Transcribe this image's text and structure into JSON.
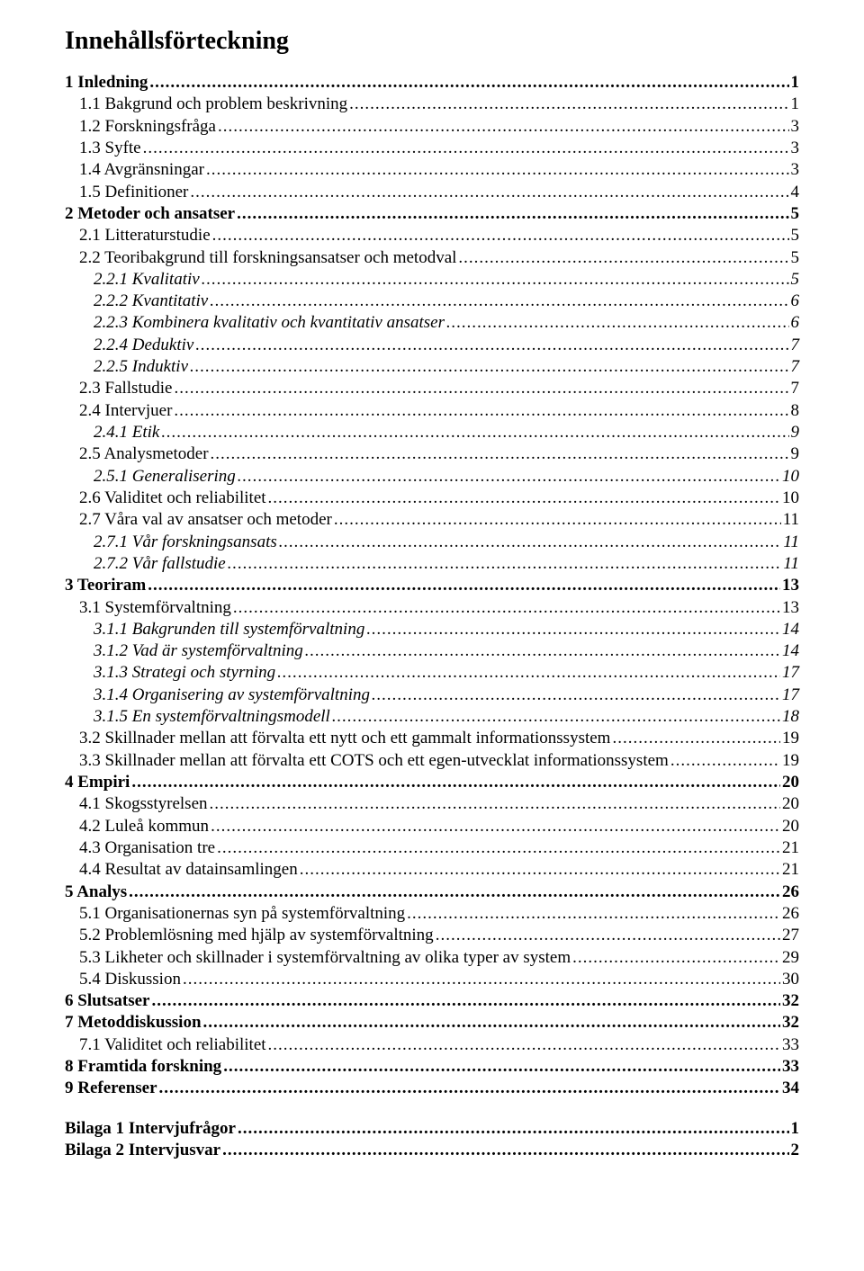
{
  "title": "Innehållsförteckning",
  "entries": [
    {
      "label": "1  Inledning",
      "page": "1",
      "level": 0,
      "bold": true,
      "italic": false
    },
    {
      "label": "1.1  Bakgrund och problem beskrivning",
      "page": "1",
      "level": 1,
      "bold": false,
      "italic": false
    },
    {
      "label": "1.2  Forskningsfråga",
      "page": "3",
      "level": 1,
      "bold": false,
      "italic": false
    },
    {
      "label": "1.3  Syfte",
      "page": "3",
      "level": 1,
      "bold": false,
      "italic": false
    },
    {
      "label": "1.4  Avgränsningar",
      "page": "3",
      "level": 1,
      "bold": false,
      "italic": false
    },
    {
      "label": "1.5  Definitioner",
      "page": "4",
      "level": 1,
      "bold": false,
      "italic": false
    },
    {
      "label": "2  Metoder och ansatser",
      "page": "5",
      "level": 0,
      "bold": true,
      "italic": false
    },
    {
      "label": "2.1  Litteraturstudie",
      "page": "5",
      "level": 1,
      "bold": false,
      "italic": false
    },
    {
      "label": "2.2  Teoribakgrund till forskningsansatser och metodval",
      "page": "5",
      "level": 1,
      "bold": false,
      "italic": false
    },
    {
      "label": "2.2.1  Kvalitativ",
      "page": "5",
      "level": 2,
      "bold": false,
      "italic": true
    },
    {
      "label": "2.2.2  Kvantitativ",
      "page": "6",
      "level": 2,
      "bold": false,
      "italic": true
    },
    {
      "label": "2.2.3  Kombinera kvalitativ och kvantitativ ansatser",
      "page": "6",
      "level": 2,
      "bold": false,
      "italic": true
    },
    {
      "label": "2.2.4  Deduktiv",
      "page": "7",
      "level": 2,
      "bold": false,
      "italic": true
    },
    {
      "label": "2.2.5  Induktiv",
      "page": "7",
      "level": 2,
      "bold": false,
      "italic": true
    },
    {
      "label": "2.3  Fallstudie",
      "page": "7",
      "level": 1,
      "bold": false,
      "italic": false
    },
    {
      "label": "2.4  Intervjuer",
      "page": "8",
      "level": 1,
      "bold": false,
      "italic": false
    },
    {
      "label": "2.4.1  Etik",
      "page": "9",
      "level": 2,
      "bold": false,
      "italic": true
    },
    {
      "label": "2.5  Analysmetoder",
      "page": "9",
      "level": 1,
      "bold": false,
      "italic": false
    },
    {
      "label": "2.5.1  Generalisering",
      "page": "10",
      "level": 2,
      "bold": false,
      "italic": true
    },
    {
      "label": "2.6  Validitet och reliabilitet",
      "page": "10",
      "level": 1,
      "bold": false,
      "italic": false
    },
    {
      "label": "2.7  Våra val av ansatser och metoder",
      "page": "11",
      "level": 1,
      "bold": false,
      "italic": false
    },
    {
      "label": "2.7.1  Vår forskningsansats",
      "page": "11",
      "level": 2,
      "bold": false,
      "italic": true
    },
    {
      "label": "2.7.2  Vår fallstudie ",
      "page": "11",
      "level": 2,
      "bold": false,
      "italic": true
    },
    {
      "label": "3  Teoriram",
      "page": "13",
      "level": 0,
      "bold": true,
      "italic": false
    },
    {
      "label": "3.1  Systemförvaltning",
      "page": "13",
      "level": 1,
      "bold": false,
      "italic": false
    },
    {
      "label": "3.1.1  Bakgrunden till systemförvaltning",
      "page": "14",
      "level": 2,
      "bold": false,
      "italic": true
    },
    {
      "label": "3.1.2  Vad är systemförvaltning",
      "page": "14",
      "level": 2,
      "bold": false,
      "italic": true
    },
    {
      "label": "3.1.3  Strategi och styrning",
      "page": "17",
      "level": 2,
      "bold": false,
      "italic": true
    },
    {
      "label": "3.1.4  Organisering av systemförvaltning",
      "page": "17",
      "level": 2,
      "bold": false,
      "italic": true
    },
    {
      "label": "3.1.5  En systemförvaltningsmodell",
      "page": "18",
      "level": 2,
      "bold": false,
      "italic": true
    },
    {
      "label": "3.2  Skillnader mellan att förvalta ett nytt och ett gammalt informationssystem",
      "page": "19",
      "level": 1,
      "bold": false,
      "italic": false
    },
    {
      "label": "3.3  Skillnader mellan att förvalta ett COTS och ett egen-utvecklat informationssystem",
      "page": "19",
      "level": 1,
      "bold": false,
      "italic": false
    },
    {
      "label": "4  Empiri",
      "page": "20",
      "level": 0,
      "bold": true,
      "italic": false
    },
    {
      "label": "4.1  Skogsstyrelsen",
      "page": "20",
      "level": 1,
      "bold": false,
      "italic": false
    },
    {
      "label": "4.2  Luleå kommun",
      "page": "20",
      "level": 1,
      "bold": false,
      "italic": false
    },
    {
      "label": "4.3  Organisation tre",
      "page": "21",
      "level": 1,
      "bold": false,
      "italic": false
    },
    {
      "label": "4.4  Resultat av datainsamlingen",
      "page": "21",
      "level": 1,
      "bold": false,
      "italic": false
    },
    {
      "label": "5  Analys",
      "page": "26",
      "level": 0,
      "bold": true,
      "italic": false
    },
    {
      "label": "5.1  Organisationernas syn på systemförvaltning ",
      "page": "26",
      "level": 1,
      "bold": false,
      "italic": false
    },
    {
      "label": "5.2  Problemlösning med hjälp av systemförvaltning",
      "page": "27",
      "level": 1,
      "bold": false,
      "italic": false
    },
    {
      "label": "5.3  Likheter och skillnader i systemförvaltning av olika typer av system ",
      "page": "29",
      "level": 1,
      "bold": false,
      "italic": false
    },
    {
      "label": "5.4  Diskussion",
      "page": "30",
      "level": 1,
      "bold": false,
      "italic": false
    },
    {
      "label": "6  Slutsatser ",
      "page": "32",
      "level": 0,
      "bold": true,
      "italic": false
    },
    {
      "label": "7  Metoddiskussion",
      "page": "32",
      "level": 0,
      "bold": true,
      "italic": false
    },
    {
      "label": "7.1  Validitet och reliabilitet",
      "page": "33",
      "level": 1,
      "bold": false,
      "italic": false
    },
    {
      "label": "8  Framtida forskning",
      "page": "33",
      "level": 0,
      "bold": true,
      "italic": false
    },
    {
      "label": "9  Referenser",
      "page": "34",
      "level": 0,
      "bold": true,
      "italic": false
    }
  ],
  "appendix": [
    {
      "label": "Bilaga 1 Intervjufrågor",
      "page": "1",
      "level": 0,
      "bold": true,
      "italic": false
    },
    {
      "label": "Bilaga 2 Intervjusvar",
      "page": "2",
      "level": 0,
      "bold": true,
      "italic": false
    }
  ]
}
